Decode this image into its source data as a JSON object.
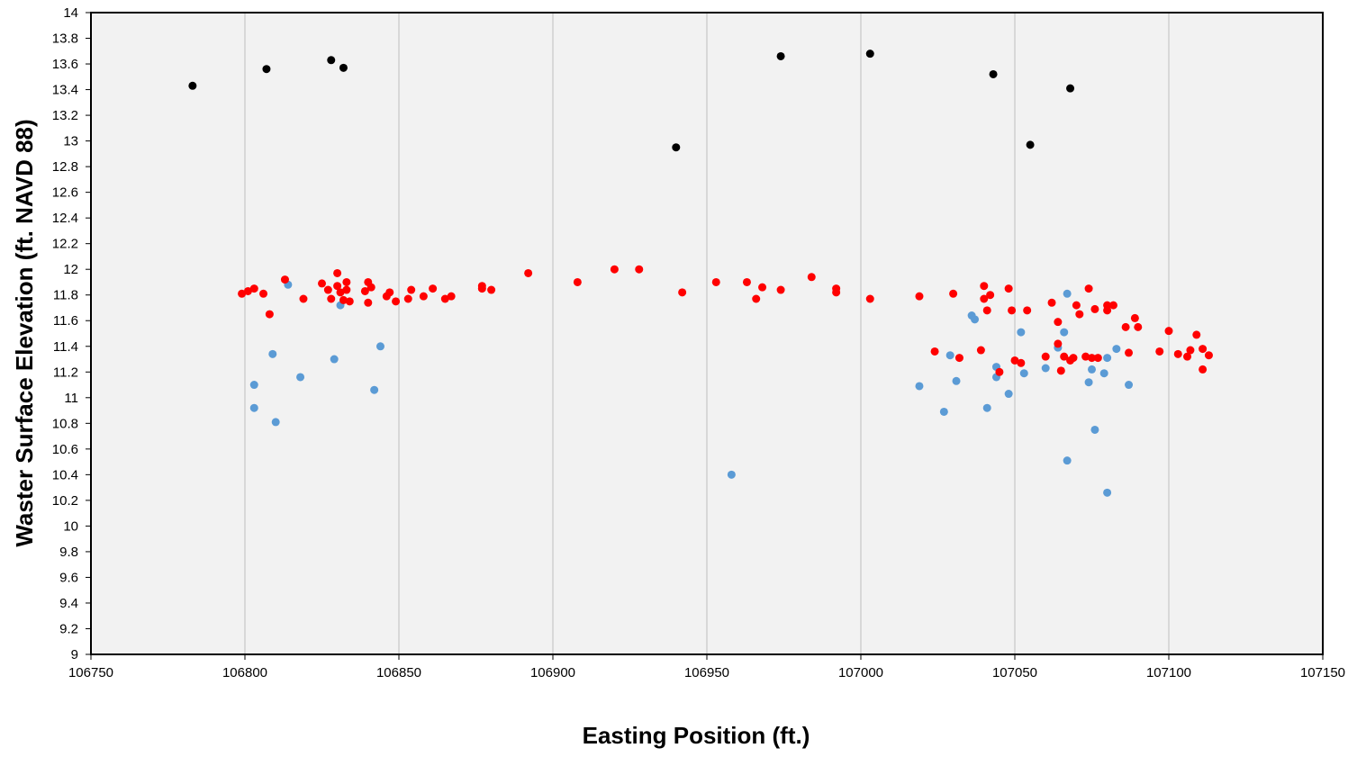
{
  "chart_data": {
    "type": "scatter",
    "title": "",
    "xlabel": "Easting Position (ft.)",
    "ylabel": "Waster Surface Elevation (ft. NAVD 88)",
    "xlim": [
      106750,
      107150
    ],
    "ylim": [
      9,
      14
    ],
    "x_ticks": [
      "106750",
      "106800",
      "106850",
      "106900",
      "106950",
      "107000",
      "107050",
      "107100",
      "107150"
    ],
    "y_ticks": [
      "9",
      "9.2",
      "9.4",
      "9.6",
      "9.8",
      "10",
      "10.2",
      "10.4",
      "10.6",
      "10.8",
      "11",
      "11.2",
      "11.4",
      "11.6",
      "11.8",
      "12",
      "12.2",
      "12.4",
      "12.6",
      "12.8",
      "13",
      "13.2",
      "13.4",
      "13.6",
      "13.8",
      "14"
    ],
    "grid": "vertical",
    "legend": "none",
    "background": "#f2f2f2",
    "series": [
      {
        "color": "#000000",
        "points": [
          [
            106783,
            13.43
          ],
          [
            106807,
            13.56
          ],
          [
            106828,
            13.63
          ],
          [
            106832,
            13.57
          ],
          [
            106940,
            12.95
          ],
          [
            106974,
            13.66
          ],
          [
            107003,
            13.68
          ],
          [
            107043,
            13.52
          ],
          [
            107055,
            12.97
          ],
          [
            107068,
            13.41
          ]
        ]
      },
      {
        "color": "#5b9bd5",
        "points": [
          [
            106814,
            11.88
          ],
          [
            106831,
            11.72
          ],
          [
            106809,
            11.34
          ],
          [
            106844,
            11.4
          ],
          [
            106829,
            11.3
          ],
          [
            106818,
            11.16
          ],
          [
            106803,
            11.1
          ],
          [
            106842,
            11.06
          ],
          [
            106803,
            10.92
          ],
          [
            106810,
            10.81
          ],
          [
            106958,
            10.4
          ],
          [
            107019,
            11.09
          ],
          [
            107027,
            10.89
          ],
          [
            107029,
            11.33
          ],
          [
            107031,
            11.13
          ],
          [
            107036,
            11.64
          ],
          [
            107037,
            11.61
          ],
          [
            107041,
            10.92
          ],
          [
            107044,
            11.24
          ],
          [
            107044,
            11.16
          ],
          [
            107048,
            11.03
          ],
          [
            107052,
            11.51
          ],
          [
            107053,
            11.19
          ],
          [
            107060,
            11.23
          ],
          [
            107064,
            11.39
          ],
          [
            107066,
            11.51
          ],
          [
            107067,
            11.81
          ],
          [
            107067,
            10.51
          ],
          [
            107074,
            11.12
          ],
          [
            107075,
            11.22
          ],
          [
            107076,
            10.75
          ],
          [
            107079,
            11.19
          ],
          [
            107080,
            11.31
          ],
          [
            107080,
            10.26
          ],
          [
            107083,
            11.38
          ],
          [
            107087,
            11.1
          ]
        ]
      },
      {
        "color": "#ff0000",
        "points": [
          [
            106799,
            11.81
          ],
          [
            106801,
            11.83
          ],
          [
            106803,
            11.85
          ],
          [
            106806,
            11.81
          ],
          [
            106808,
            11.65
          ],
          [
            106813,
            11.92
          ],
          [
            106819,
            11.77
          ],
          [
            106825,
            11.89
          ],
          [
            106827,
            11.84
          ],
          [
            106828,
            11.77
          ],
          [
            106830,
            11.97
          ],
          [
            106830,
            11.87
          ],
          [
            106831,
            11.82
          ],
          [
            106832,
            11.76
          ],
          [
            106833,
            11.9
          ],
          [
            106833,
            11.84
          ],
          [
            106834,
            11.75
          ],
          [
            106839,
            11.83
          ],
          [
            106840,
            11.9
          ],
          [
            106840,
            11.74
          ],
          [
            106841,
            11.86
          ],
          [
            106846,
            11.79
          ],
          [
            106847,
            11.82
          ],
          [
            106849,
            11.75
          ],
          [
            106853,
            11.77
          ],
          [
            106854,
            11.84
          ],
          [
            106858,
            11.79
          ],
          [
            106861,
            11.85
          ],
          [
            106865,
            11.77
          ],
          [
            106867,
            11.79
          ],
          [
            106877,
            11.87
          ],
          [
            106877,
            11.85
          ],
          [
            106880,
            11.84
          ],
          [
            106892,
            11.97
          ],
          [
            106908,
            11.9
          ],
          [
            106920,
            12.0
          ],
          [
            106928,
            12.0
          ],
          [
            106942,
            11.82
          ],
          [
            106953,
            11.9
          ],
          [
            106963,
            11.9
          ],
          [
            106966,
            11.77
          ],
          [
            106968,
            11.86
          ],
          [
            106974,
            11.84
          ],
          [
            106984,
            11.94
          ],
          [
            106992,
            11.85
          ],
          [
            106992,
            11.82
          ],
          [
            107003,
            11.77
          ],
          [
            107019,
            11.79
          ],
          [
            107024,
            11.36
          ],
          [
            107030,
            11.81
          ],
          [
            107032,
            11.31
          ],
          [
            107039,
            11.37
          ],
          [
            107040,
            11.87
          ],
          [
            107040,
            11.77
          ],
          [
            107041,
            11.68
          ],
          [
            107042,
            11.8
          ],
          [
            107045,
            11.2
          ],
          [
            107048,
            11.85
          ],
          [
            107049,
            11.68
          ],
          [
            107050,
            11.29
          ],
          [
            107052,
            11.27
          ],
          [
            107054,
            11.68
          ],
          [
            107060,
            11.32
          ],
          [
            107062,
            11.74
          ],
          [
            107064,
            11.59
          ],
          [
            107064,
            11.42
          ],
          [
            107065,
            11.21
          ],
          [
            107066,
            11.32
          ],
          [
            107068,
            11.29
          ],
          [
            107069,
            11.31
          ],
          [
            107070,
            11.72
          ],
          [
            107071,
            11.65
          ],
          [
            107073,
            11.32
          ],
          [
            107074,
            11.85
          ],
          [
            107075,
            11.31
          ],
          [
            107076,
            11.69
          ],
          [
            107077,
            11.31
          ],
          [
            107080,
            11.68
          ],
          [
            107080,
            11.72
          ],
          [
            107082,
            11.72
          ],
          [
            107086,
            11.55
          ],
          [
            107087,
            11.35
          ],
          [
            107089,
            11.62
          ],
          [
            107090,
            11.55
          ],
          [
            107097,
            11.36
          ],
          [
            107100,
            11.52
          ],
          [
            107103,
            11.34
          ],
          [
            107106,
            11.32
          ],
          [
            107107,
            11.37
          ],
          [
            107109,
            11.49
          ],
          [
            107111,
            11.22
          ],
          [
            107111,
            11.38
          ],
          [
            107113,
            11.33
          ]
        ]
      }
    ]
  }
}
